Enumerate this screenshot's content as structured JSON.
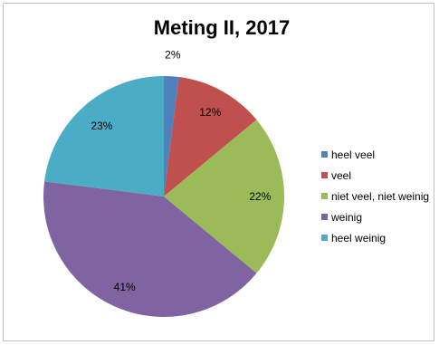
{
  "chart_data": {
    "type": "pie",
    "title": "Meting II, 2017",
    "categories": [
      "heel veel",
      "veel",
      "niet veel, niet weinig",
      "weinig",
      "heel weinig"
    ],
    "values": [
      2,
      12,
      22,
      41,
      23
    ],
    "labels": [
      "2%",
      "12%",
      "22%",
      "41%",
      "23%"
    ],
    "colors": [
      "#4F81BD",
      "#C0504D",
      "#9BBB59",
      "#8064A2",
      "#4BACC6"
    ],
    "legend_position": "right"
  }
}
